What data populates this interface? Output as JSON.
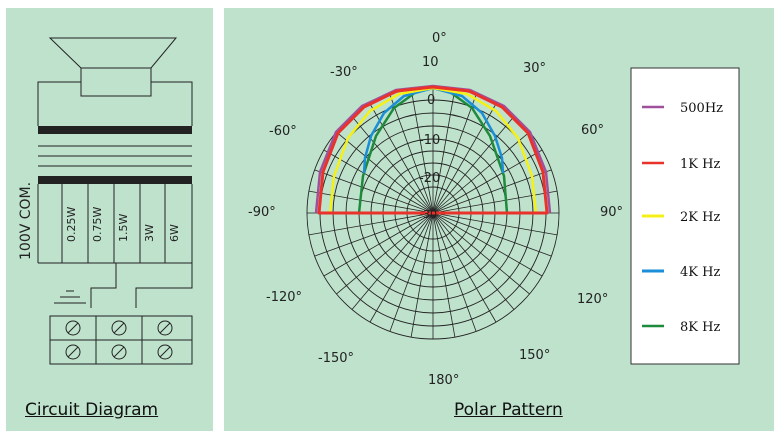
{
  "circuit": {
    "caption": "Circuit Diagram",
    "line_label": "100V COM.",
    "taps": [
      "0.25W",
      "0.75W",
      "1.5W",
      "3W",
      "6W"
    ]
  },
  "polar": {
    "caption": "Polar Pattern",
    "angle_labels": [
      "0°",
      "30°",
      "60°",
      "90°",
      "120°",
      "150°",
      "180°",
      "-150°",
      "-120°",
      "-90°",
      "-60°",
      "-30°"
    ],
    "ring_labels": [
      "10",
      "0",
      "-10",
      "-20",
      "-30"
    ],
    "legend": [
      {
        "label": "500Hz",
        "color": "#a0509a"
      },
      {
        "label": "1K Hz",
        "color": "#e8322a"
      },
      {
        "label": "2K Hz",
        "color": "#f5f016"
      },
      {
        "label": "4K Hz",
        "color": "#1a8ed6"
      },
      {
        "label": "8K Hz",
        "color": "#1e8a3c"
      }
    ]
  }
}
